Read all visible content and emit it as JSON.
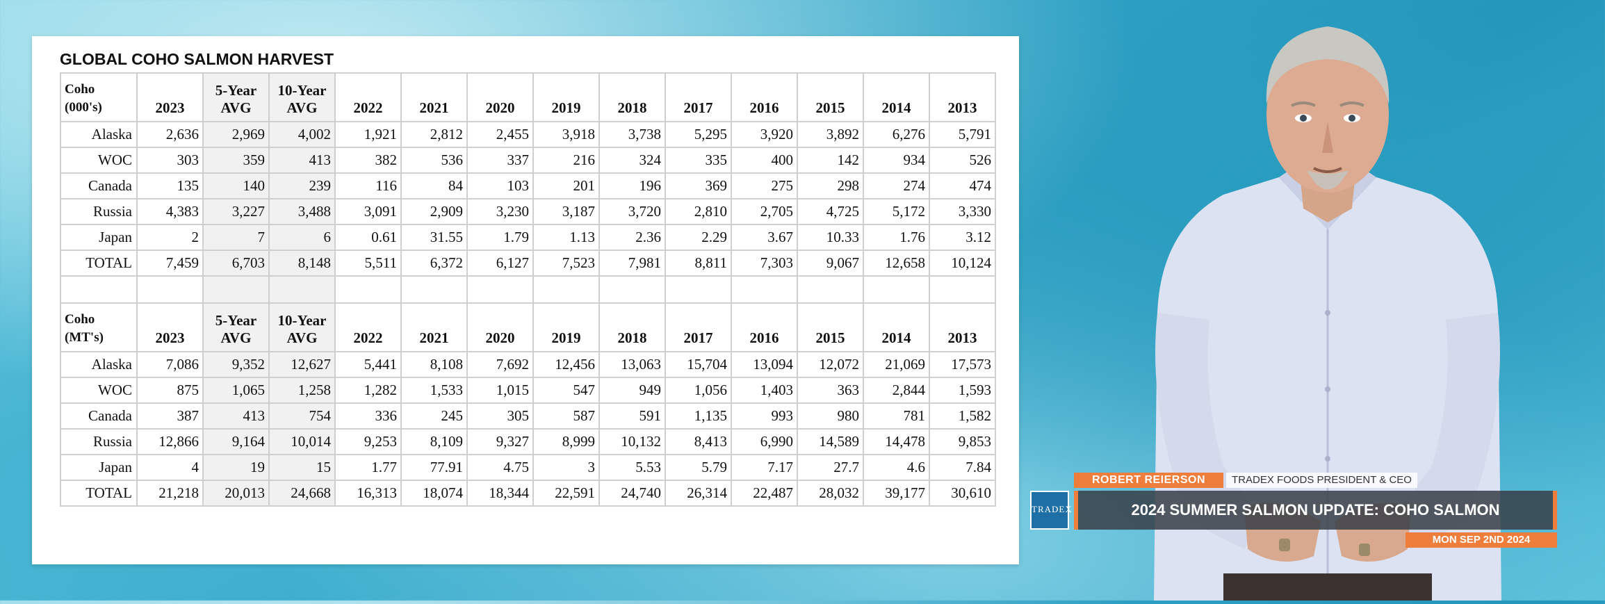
{
  "table_title": "GLOBAL COHO SALMON HARVEST",
  "colors": {
    "accent_orange": "#ef7d3c",
    "headline_bar": "#373e46",
    "logo_blue": "#1d6fa5"
  },
  "section_top": {
    "unit_line1": "Coho",
    "unit_line2": "(000's)",
    "headers": [
      [
        "",
        "2023"
      ],
      [
        "5-Year",
        "AVG"
      ],
      [
        "10-Year",
        "AVG"
      ],
      [
        "",
        "2022"
      ],
      [
        "",
        "2021"
      ],
      [
        "",
        "2020"
      ],
      [
        "",
        "2019"
      ],
      [
        "",
        "2018"
      ],
      [
        "",
        "2017"
      ],
      [
        "",
        "2016"
      ],
      [
        "",
        "2015"
      ],
      [
        "",
        "2014"
      ],
      [
        "",
        "2013"
      ]
    ],
    "rows": [
      {
        "label": "Alaska",
        "values": [
          "2,636",
          "2,969",
          "4,002",
          "1,921",
          "2,812",
          "2,455",
          "3,918",
          "3,738",
          "5,295",
          "3,920",
          "3,892",
          "6,276",
          "5,791"
        ]
      },
      {
        "label": "WOC",
        "values": [
          "303",
          "359",
          "413",
          "382",
          "536",
          "337",
          "216",
          "324",
          "335",
          "400",
          "142",
          "934",
          "526"
        ]
      },
      {
        "label": "Canada",
        "values": [
          "135",
          "140",
          "239",
          "116",
          "84",
          "103",
          "201",
          "196",
          "369",
          "275",
          "298",
          "274",
          "474"
        ]
      },
      {
        "label": "Russia",
        "values": [
          "4,383",
          "3,227",
          "3,488",
          "3,091",
          "2,909",
          "3,230",
          "3,187",
          "3,720",
          "2,810",
          "2,705",
          "4,725",
          "5,172",
          "3,330"
        ]
      },
      {
        "label": "Japan",
        "values": [
          "2",
          "7",
          "6",
          "0.61",
          "31.55",
          "1.79",
          "1.13",
          "2.36",
          "2.29",
          "3.67",
          "10.33",
          "1.76",
          "3.12"
        ]
      },
      {
        "label": "TOTAL",
        "values": [
          "7,459",
          "6,703",
          "8,148",
          "5,511",
          "6,372",
          "6,127",
          "7,523",
          "7,981",
          "8,811",
          "7,303",
          "9,067",
          "12,658",
          "10,124"
        ]
      }
    ]
  },
  "section_bottom": {
    "unit_line1": "Coho",
    "unit_line2": "(MT's)",
    "headers": [
      [
        "",
        "2023"
      ],
      [
        "5-Year",
        "AVG"
      ],
      [
        "10-Year",
        "AVG"
      ],
      [
        "",
        "2022"
      ],
      [
        "",
        "2021"
      ],
      [
        "",
        "2020"
      ],
      [
        "",
        "2019"
      ],
      [
        "",
        "2018"
      ],
      [
        "",
        "2017"
      ],
      [
        "",
        "2016"
      ],
      [
        "",
        "2015"
      ],
      [
        "",
        "2014"
      ],
      [
        "",
        "2013"
      ]
    ],
    "rows": [
      {
        "label": "Alaska",
        "values": [
          "7,086",
          "9,352",
          "12,627",
          "5,441",
          "8,108",
          "7,692",
          "12,456",
          "13,063",
          "15,704",
          "13,094",
          "12,072",
          "21,069",
          "17,573"
        ]
      },
      {
        "label": "WOC",
        "values": [
          "875",
          "1,065",
          "1,258",
          "1,282",
          "1,533",
          "1,015",
          "547",
          "949",
          "1,056",
          "1,403",
          "363",
          "2,844",
          "1,593"
        ]
      },
      {
        "label": "Canada",
        "values": [
          "387",
          "413",
          "754",
          "336",
          "245",
          "305",
          "587",
          "591",
          "1,135",
          "993",
          "980",
          "781",
          "1,582"
        ]
      },
      {
        "label": "Russia",
        "values": [
          "12,866",
          "9,164",
          "10,014",
          "9,253",
          "8,109",
          "9,327",
          "8,999",
          "10,132",
          "8,413",
          "6,990",
          "14,589",
          "14,478",
          "9,853"
        ]
      },
      {
        "label": "Japan",
        "values": [
          "4",
          "19",
          "15",
          "1.77",
          "77.91",
          "4.75",
          "3",
          "5.53",
          "5.79",
          "7.17",
          "27.7",
          "4.6",
          "7.84"
        ]
      },
      {
        "label": "TOTAL",
        "values": [
          "21,218",
          "20,013",
          "24,668",
          "16,313",
          "18,074",
          "18,344",
          "22,591",
          "24,740",
          "26,314",
          "22,487",
          "28,032",
          "39,177",
          "30,610"
        ]
      }
    ]
  },
  "lower_third": {
    "logo_text": "TRADEX",
    "name": "ROBERT REIERSON",
    "role": "TRADEX FOODS PRESIDENT & CEO",
    "headline": "2024 SUMMER SALMON UPDATE:  COHO SALMON",
    "date": "MON SEP 2ND 2024"
  }
}
